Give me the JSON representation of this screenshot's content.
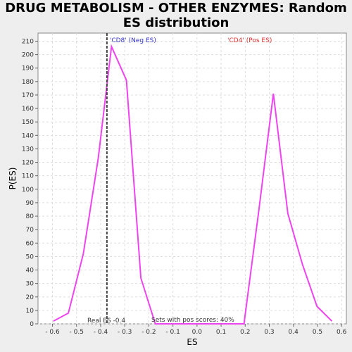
{
  "chart_data": {
    "type": "line",
    "title": "DRUG METABOLISM - OTHER ENZYMES: Random ES distribution",
    "xlabel": "ES",
    "ylabel": "P(ES)",
    "xlim": [
      -0.66,
      0.62
    ],
    "ylim": [
      0,
      216
    ],
    "x_ticks": [
      -0.6,
      -0.5,
      -0.4,
      -0.3,
      -0.2,
      -0.1,
      0.0,
      0.1,
      0.2,
      0.3,
      0.4,
      0.5,
      0.6
    ],
    "x_tick_labels": [
      "- 0.6",
      "- 0.5",
      "- 0.4",
      "- 0.3",
      "- 0.2",
      "- 0.1",
      "0.0",
      "0.1",
      "0.2",
      "0.3",
      "0.4",
      "0.5",
      "0.6"
    ],
    "y_ticks": [
      0,
      10,
      20,
      30,
      40,
      50,
      60,
      70,
      80,
      90,
      100,
      110,
      120,
      130,
      140,
      150,
      160,
      170,
      180,
      190,
      200,
      210
    ],
    "grid": true,
    "series": [
      {
        "color": "#ee44ee",
        "x": [
          -0.596,
          -0.534,
          -0.472,
          -0.41,
          -0.355,
          -0.293,
          -0.233,
          -0.173,
          0.0,
          0.195,
          0.255,
          0.317,
          0.377,
          0.438,
          0.498,
          0.56
        ],
        "y": [
          2,
          8,
          52,
          123,
          206,
          181,
          34,
          0,
          0,
          0,
          82,
          171,
          82,
          44,
          13,
          2
        ]
      }
    ],
    "vline": {
      "x": -0.374,
      "color": "#444444",
      "style": "dashed"
    },
    "annotations": {
      "neg_label": "'CD8' (Neg ES)",
      "pos_label": "'CD4' (Pos ES)",
      "neg_color": "#3333cc",
      "pos_color": "#dd3333",
      "real_es": "Real ES -0.4",
      "pos_scores": "Sets with pos scores: 40%"
    }
  }
}
